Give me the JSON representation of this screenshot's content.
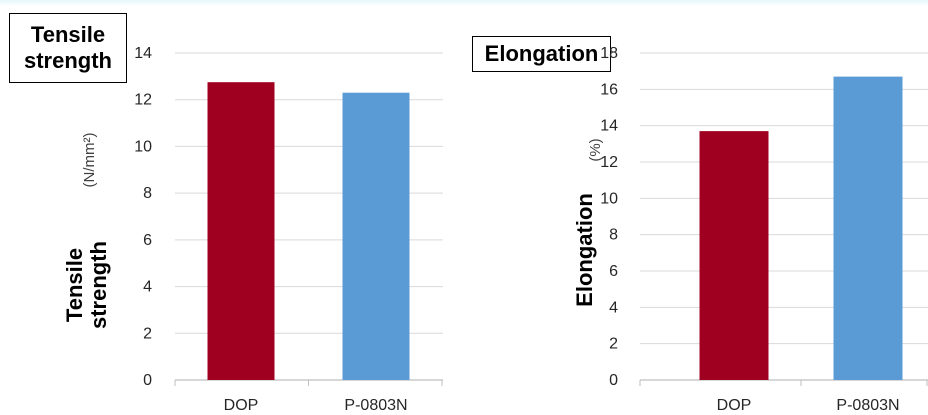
{
  "chart_data": [
    {
      "type": "bar",
      "title": "Tensile strength",
      "ylabel": "Tensile strength",
      "yunit": "(N/mm²)",
      "categories": [
        "DOP",
        "P-0803N"
      ],
      "values": [
        12.75,
        12.3
      ],
      "colors": [
        "#a00020",
        "#5b9bd5"
      ],
      "ylim": [
        0,
        14
      ],
      "yticks": [
        0,
        2,
        4,
        6,
        8,
        10,
        12,
        14
      ],
      "grid": true
    },
    {
      "type": "bar",
      "title": "Elongation",
      "ylabel": "Elongation",
      "yunit": "(%)",
      "categories": [
        "DOP",
        "P-0803N"
      ],
      "values": [
        13.7,
        16.7
      ],
      "colors": [
        "#a00020",
        "#5b9bd5"
      ],
      "ylim": [
        0,
        18
      ],
      "yticks": [
        0,
        2,
        4,
        6,
        8,
        10,
        12,
        14,
        16,
        18
      ],
      "grid": true
    }
  ]
}
